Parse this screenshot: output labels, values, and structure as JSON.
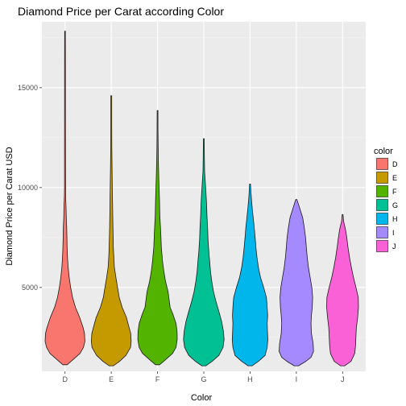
{
  "chart_data": {
    "type": "violin",
    "title": "Diamond Price per Carat according Color",
    "xlabel": "Color",
    "ylabel": "Diamond Price per Carat USD",
    "categories": [
      "D",
      "E",
      "F",
      "G",
      "H",
      "I",
      "J"
    ],
    "ylim": [
      800,
      18300
    ],
    "y_ticks": [
      5000,
      10000,
      15000
    ],
    "y_tick_labels": [
      "5000",
      "10000",
      "15000"
    ],
    "grid": true,
    "legend": {
      "title": "color",
      "placement": "right",
      "entries": [
        "D",
        "E",
        "F",
        "G",
        "H",
        "I",
        "J"
      ]
    },
    "colors": {
      "D": "#F8766D",
      "E": "#C49A00",
      "F": "#53B400",
      "G": "#00C094",
      "H": "#00B6EB",
      "I": "#A58AFF",
      "J": "#FB61D7"
    },
    "series": [
      {
        "name": "D",
        "min": 1130,
        "max": 17830,
        "profile": [
          [
            1130,
            0.1
          ],
          [
            1400,
            0.4
          ],
          [
            1700,
            0.72
          ],
          [
            2000,
            0.88
          ],
          [
            2300,
            0.95
          ],
          [
            2700,
            0.93
          ],
          [
            3000,
            0.86
          ],
          [
            3500,
            0.7
          ],
          [
            4000,
            0.5
          ],
          [
            4500,
            0.36
          ],
          [
            5000,
            0.27
          ],
          [
            5500,
            0.2
          ],
          [
            6000,
            0.15
          ],
          [
            6500,
            0.12
          ],
          [
            7000,
            0.1
          ],
          [
            7500,
            0.09
          ],
          [
            8000,
            0.08
          ],
          [
            8500,
            0.06
          ],
          [
            9000,
            0.05
          ],
          [
            9500,
            0.03
          ],
          [
            10000,
            0.025
          ],
          [
            12000,
            0.022
          ],
          [
            14000,
            0.02
          ],
          [
            16000,
            0.018
          ],
          [
            17830,
            0.015
          ]
        ]
      },
      {
        "name": "E",
        "min": 1080,
        "max": 14600,
        "profile": [
          [
            1080,
            0.1
          ],
          [
            1300,
            0.4
          ],
          [
            1600,
            0.7
          ],
          [
            2000,
            0.92
          ],
          [
            2300,
            0.95
          ],
          [
            2700,
            0.93
          ],
          [
            3000,
            0.85
          ],
          [
            3500,
            0.72
          ],
          [
            4000,
            0.52
          ],
          [
            4500,
            0.38
          ],
          [
            5000,
            0.3
          ],
          [
            5500,
            0.22
          ],
          [
            6000,
            0.15
          ],
          [
            6500,
            0.12
          ],
          [
            7000,
            0.1
          ],
          [
            7500,
            0.09
          ],
          [
            8000,
            0.08
          ],
          [
            9000,
            0.065
          ],
          [
            10000,
            0.05
          ],
          [
            11000,
            0.035
          ],
          [
            12000,
            0.025
          ],
          [
            13000,
            0.022
          ],
          [
            14600,
            0.02
          ]
        ]
      },
      {
        "name": "F",
        "min": 1130,
        "max": 13860,
        "profile": [
          [
            1130,
            0.1
          ],
          [
            1400,
            0.4
          ],
          [
            1700,
            0.72
          ],
          [
            2000,
            0.88
          ],
          [
            2400,
            0.94
          ],
          [
            2800,
            0.93
          ],
          [
            3200,
            0.88
          ],
          [
            3700,
            0.72
          ],
          [
            4000,
            0.6
          ],
          [
            4400,
            0.55
          ],
          [
            4800,
            0.5
          ],
          [
            5300,
            0.38
          ],
          [
            5800,
            0.3
          ],
          [
            6300,
            0.24
          ],
          [
            7000,
            0.18
          ],
          [
            7800,
            0.15
          ],
          [
            8600,
            0.11
          ],
          [
            9500,
            0.09
          ],
          [
            10500,
            0.06
          ],
          [
            11300,
            0.04
          ],
          [
            12000,
            0.03
          ],
          [
            13000,
            0.022
          ],
          [
            13860,
            0.02
          ]
        ]
      },
      {
        "name": "G",
        "min": 1080,
        "max": 12450,
        "profile": [
          [
            1080,
            0.1
          ],
          [
            1300,
            0.4
          ],
          [
            1600,
            0.72
          ],
          [
            2000,
            0.92
          ],
          [
            2400,
            0.97
          ],
          [
            2800,
            0.94
          ],
          [
            3300,
            0.85
          ],
          [
            3800,
            0.72
          ],
          [
            4300,
            0.58
          ],
          [
            4800,
            0.46
          ],
          [
            5300,
            0.38
          ],
          [
            5800,
            0.32
          ],
          [
            6300,
            0.28
          ],
          [
            6800,
            0.24
          ],
          [
            7400,
            0.2
          ],
          [
            8000,
            0.18
          ],
          [
            8600,
            0.15
          ],
          [
            9200,
            0.13
          ],
          [
            9800,
            0.1
          ],
          [
            10300,
            0.07
          ],
          [
            10800,
            0.04
          ],
          [
            11600,
            0.025
          ],
          [
            12450,
            0.02
          ]
        ]
      },
      {
        "name": "H",
        "min": 1080,
        "max": 10180,
        "profile": [
          [
            1080,
            0.1
          ],
          [
            1300,
            0.4
          ],
          [
            1600,
            0.72
          ],
          [
            2000,
            0.82
          ],
          [
            2400,
            0.85
          ],
          [
            2800,
            0.83
          ],
          [
            3200,
            0.82
          ],
          [
            3600,
            0.84
          ],
          [
            4000,
            0.82
          ],
          [
            4500,
            0.78
          ],
          [
            5000,
            0.65
          ],
          [
            5500,
            0.5
          ],
          [
            6000,
            0.4
          ],
          [
            6500,
            0.33
          ],
          [
            7000,
            0.28
          ],
          [
            7500,
            0.24
          ],
          [
            8000,
            0.2
          ],
          [
            8500,
            0.15
          ],
          [
            9000,
            0.1
          ],
          [
            9500,
            0.06
          ],
          [
            10180,
            0.02
          ]
        ]
      },
      {
        "name": "I",
        "min": 1080,
        "max": 9400,
        "profile": [
          [
            1080,
            0.1
          ],
          [
            1300,
            0.45
          ],
          [
            1500,
            0.7
          ],
          [
            1800,
            0.82
          ],
          [
            2200,
            0.8
          ],
          [
            2700,
            0.72
          ],
          [
            3200,
            0.7
          ],
          [
            3600,
            0.72
          ],
          [
            4000,
            0.76
          ],
          [
            4500,
            0.78
          ],
          [
            5000,
            0.74
          ],
          [
            5500,
            0.66
          ],
          [
            6000,
            0.58
          ],
          [
            6500,
            0.52
          ],
          [
            7000,
            0.48
          ],
          [
            7500,
            0.44
          ],
          [
            8000,
            0.38
          ],
          [
            8500,
            0.3
          ],
          [
            9000,
            0.15
          ],
          [
            9400,
            0.03
          ]
        ]
      },
      {
        "name": "J",
        "min": 1080,
        "max": 8650,
        "profile": [
          [
            1080,
            0.1
          ],
          [
            1300,
            0.4
          ],
          [
            1700,
            0.58
          ],
          [
            2100,
            0.62
          ],
          [
            2600,
            0.64
          ],
          [
            3000,
            0.66
          ],
          [
            3500,
            0.72
          ],
          [
            4000,
            0.76
          ],
          [
            4500,
            0.75
          ],
          [
            5000,
            0.64
          ],
          [
            5500,
            0.52
          ],
          [
            6000,
            0.42
          ],
          [
            6500,
            0.33
          ],
          [
            7000,
            0.26
          ],
          [
            7500,
            0.2
          ],
          [
            7900,
            0.14
          ],
          [
            8300,
            0.05
          ],
          [
            8650,
            0.02
          ]
        ]
      }
    ]
  }
}
